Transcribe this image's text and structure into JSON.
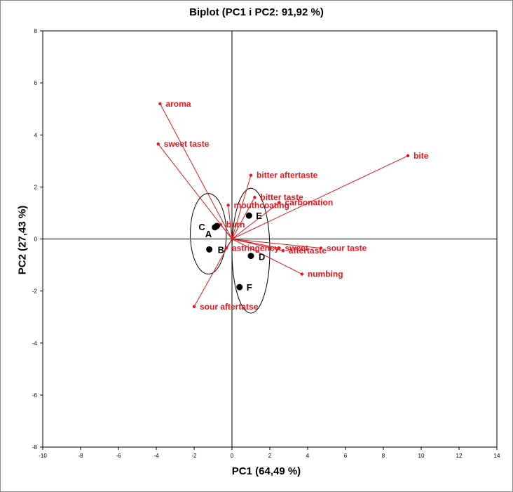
{
  "chart_data": {
    "type": "scatter",
    "title": "Biplot (PC1 i PC2: 91,92 %)",
    "xlabel": "PC1 (64,49 %)",
    "ylabel": "PC2 (27,43 %)",
    "xlim": [
      -10,
      14
    ],
    "ylim": [
      -8,
      8
    ],
    "xticks": [
      -10,
      -8,
      -6,
      -4,
      -2,
      0,
      2,
      4,
      6,
      8,
      10,
      12,
      14
    ],
    "yticks": [
      -8,
      -6,
      -4,
      -2,
      0,
      2,
      4,
      6,
      8
    ],
    "grid": false,
    "colors": {
      "variables": "#e8151b",
      "observations": "#000000",
      "ellipse": "#000000"
    },
    "observations": [
      {
        "label": "A",
        "x": -0.9,
        "y": 0.45
      },
      {
        "label": "C",
        "x": -0.8,
        "y": 0.5
      },
      {
        "label": "B",
        "x": -1.2,
        "y": -0.4
      },
      {
        "label": "E",
        "x": 0.9,
        "y": 0.9
      },
      {
        "label": "D",
        "x": 1.0,
        "y": -0.65
      },
      {
        "label": "F",
        "x": 0.4,
        "y": -1.85
      }
    ],
    "variables": [
      {
        "label": "aroma",
        "x": -3.8,
        "y": 5.2
      },
      {
        "label": "sweet taste",
        "x": -3.9,
        "y": 3.65
      },
      {
        "label": "bite",
        "x": 9.3,
        "y": 3.2
      },
      {
        "label": "bitter aftertaste",
        "x": 1.0,
        "y": 2.45
      },
      {
        "label": "bitter taste",
        "x": 1.2,
        "y": 1.6
      },
      {
        "label": "mouthcoating",
        "x": -0.2,
        "y": 1.3
      },
      {
        "label": "carbonation",
        "x": 2.5,
        "y": 1.4
      },
      {
        "label": "burn",
        "x": -0.6,
        "y": 0.55
      },
      {
        "label": "astringency",
        "x": -0.3,
        "y": -0.35
      },
      {
        "label": "sweet",
        "x": 2.5,
        "y": -0.35
      },
      {
        "label": "sour taste",
        "x": 4.7,
        "y": -0.35
      },
      {
        "label": "aftertaste",
        "x": 2.7,
        "y": -0.45
      },
      {
        "label": "numbing",
        "x": 3.7,
        "y": -1.35
      },
      {
        "label": "sour aftertatse",
        "x": -2.0,
        "y": -2.6
      }
    ],
    "ellipses": [
      {
        "cx": -1.25,
        "cy": 0.2,
        "rx": 0.95,
        "ry": 1.55
      },
      {
        "cx": 1.0,
        "cy": -0.45,
        "rx": 1.0,
        "ry": 2.4
      }
    ]
  }
}
